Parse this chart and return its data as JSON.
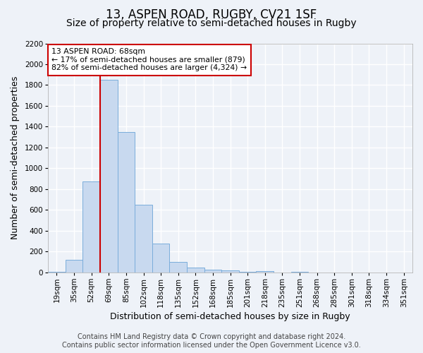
{
  "title": "13, ASPEN ROAD, RUGBY, CV21 1SF",
  "subtitle": "Size of property relative to semi-detached houses in Rugby",
  "xlabel": "Distribution of semi-detached houses by size in Rugby",
  "ylabel": "Number of semi-detached properties",
  "categories": [
    "19sqm",
    "35sqm",
    "52sqm",
    "69sqm",
    "85sqm",
    "102sqm",
    "118sqm",
    "135sqm",
    "152sqm",
    "168sqm",
    "185sqm",
    "201sqm",
    "218sqm",
    "235sqm",
    "251sqm",
    "268sqm",
    "285sqm",
    "301sqm",
    "318sqm",
    "334sqm",
    "351sqm"
  ],
  "values": [
    10,
    125,
    875,
    1850,
    1350,
    650,
    275,
    100,
    45,
    30,
    20,
    5,
    15,
    0,
    5,
    0,
    0,
    0,
    0,
    0,
    0
  ],
  "bar_color": "#c8d9ef",
  "bar_edge_color": "#7aaddb",
  "highlight_line_index": 3,
  "highlight_line_color": "#cc0000",
  "annotation_text": "13 ASPEN ROAD: 68sqm\n← 17% of semi-detached houses are smaller (879)\n82% of semi-detached houses are larger (4,324) →",
  "annotation_box_color": "#ffffff",
  "annotation_box_edge_color": "#cc0000",
  "footer_line1": "Contains HM Land Registry data © Crown copyright and database right 2024.",
  "footer_line2": "Contains public sector information licensed under the Open Government Licence v3.0.",
  "ylim": [
    0,
    2200
  ],
  "yticks": [
    0,
    200,
    400,
    600,
    800,
    1000,
    1200,
    1400,
    1600,
    1800,
    2000,
    2200
  ],
  "background_color": "#eef2f8",
  "plot_background_color": "#eef2f8",
  "grid_color": "#ffffff",
  "title_fontsize": 12,
  "subtitle_fontsize": 10,
  "axis_label_fontsize": 9,
  "tick_fontsize": 7.5,
  "footer_fontsize": 7
}
